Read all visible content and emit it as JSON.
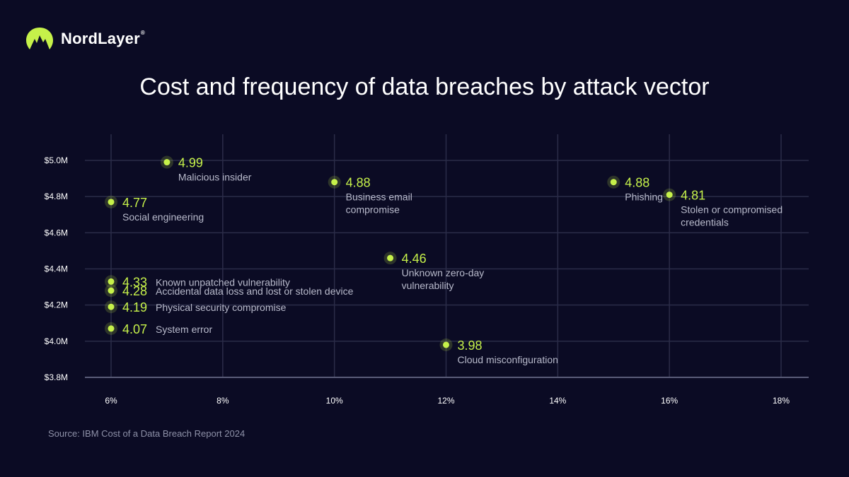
{
  "brand": {
    "name": "NordLayer",
    "reg": "®",
    "logo_icon": "mountain-logo-icon",
    "accent": "#c6f14a"
  },
  "colors": {
    "background": "#0b0b24",
    "grid": "#2b2c48",
    "point": "#c6f14a",
    "label": "#b8bacb"
  },
  "source": "Source: IBM Cost of a Data Breach Report 2024",
  "chart_data": {
    "type": "scatter",
    "title": "Cost and frequency of data breaches by attack vector",
    "xlabel": "",
    "ylabel": "",
    "xlim": [
      6,
      18
    ],
    "ylim": [
      3.8,
      5.0
    ],
    "x_ticks": [
      6,
      8,
      10,
      12,
      14,
      16,
      18
    ],
    "x_tick_labels": [
      "6%",
      "8%",
      "10%",
      "12%",
      "14%",
      "16%",
      "18%"
    ],
    "y_ticks": [
      3.8,
      4.0,
      4.2,
      4.4,
      4.6,
      4.8,
      5.0
    ],
    "y_tick_labels": [
      "$3.8M",
      "$4.0M",
      "$4.2M",
      "$4.4M",
      "$4.6M",
      "$4.8M",
      "$5.0M"
    ],
    "grid": true,
    "points": [
      {
        "x": 7,
        "y": 4.99,
        "value": "4.99",
        "label": [
          "Malicious insider"
        ],
        "placement": "below"
      },
      {
        "x": 6,
        "y": 4.77,
        "value": "4.77",
        "label": [
          "Social engineering"
        ],
        "placement": "below"
      },
      {
        "x": 10,
        "y": 4.88,
        "value": "4.88",
        "label": [
          "Business email",
          "compromise"
        ],
        "placement": "below"
      },
      {
        "x": 15,
        "y": 4.88,
        "value": "4.88",
        "label": [
          "Phishing"
        ],
        "placement": "below"
      },
      {
        "x": 16,
        "y": 4.81,
        "value": "4.81",
        "label": [
          "Stolen or compromised",
          "credentials"
        ],
        "placement": "below"
      },
      {
        "x": 11,
        "y": 4.46,
        "value": "4.46",
        "label": [
          "Unknown zero-day",
          "vulnerability"
        ],
        "placement": "below"
      },
      {
        "x": 6,
        "y": 4.33,
        "value": "4.33",
        "label": [
          "Known unpatched vulnerability"
        ],
        "placement": "right"
      },
      {
        "x": 6,
        "y": 4.28,
        "value": "4.28",
        "label": [
          "Accidental data loss and lost or stolen device"
        ],
        "placement": "right"
      },
      {
        "x": 6,
        "y": 4.19,
        "value": "4.19",
        "label": [
          "Physical security compromise"
        ],
        "placement": "right"
      },
      {
        "x": 6,
        "y": 4.07,
        "value": "4.07",
        "label": [
          "System error"
        ],
        "placement": "right"
      },
      {
        "x": 12,
        "y": 3.98,
        "value": "3.98",
        "label": [
          "Cloud misconfiguration"
        ],
        "placement": "below"
      }
    ]
  }
}
